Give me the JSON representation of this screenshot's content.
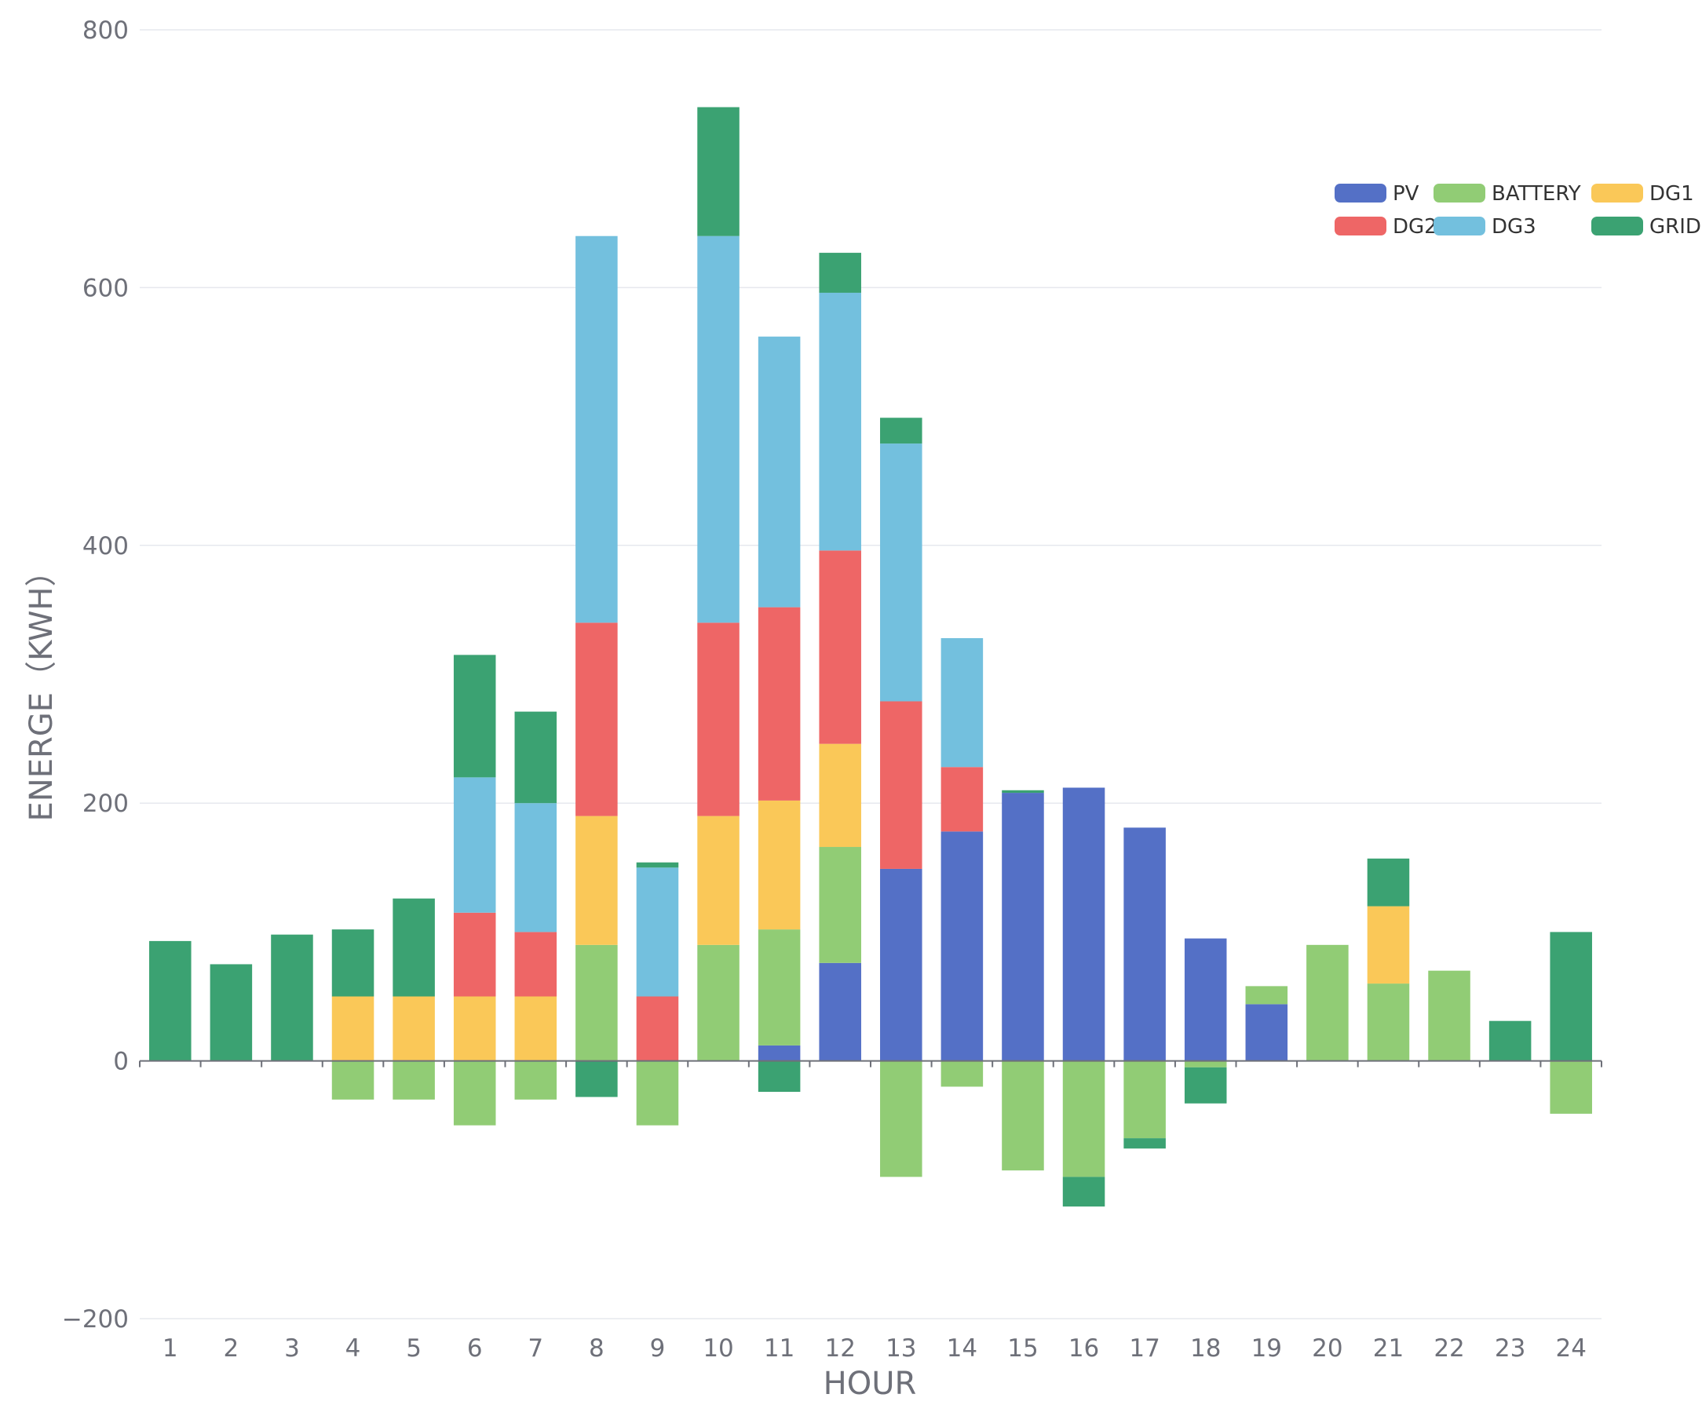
{
  "chart_data": {
    "type": "bar",
    "stacked": true,
    "title": "",
    "xlabel": "HOUR",
    "ylabel": "ENERGE（KWH）",
    "ylim": [
      -200,
      800
    ],
    "yticks": [
      -200,
      0,
      200,
      400,
      600,
      800
    ],
    "ytick_labels": [
      "−200",
      "0",
      "200",
      "400",
      "600",
      "800"
    ],
    "grid": true,
    "legend_position": "top-right",
    "categories": [
      "1",
      "2",
      "3",
      "4",
      "5",
      "6",
      "7",
      "8",
      "9",
      "10",
      "11",
      "12",
      "13",
      "14",
      "15",
      "16",
      "17",
      "18",
      "19",
      "20",
      "21",
      "22",
      "23",
      "24"
    ],
    "series": [
      {
        "name": "PV",
        "color": "#5470c6",
        "values": [
          0,
          0,
          0,
          0,
          0,
          0,
          0,
          0,
          0,
          0,
          12,
          76,
          149,
          178,
          208,
          212,
          181,
          95,
          44,
          0,
          0,
          0,
          0,
          0
        ]
      },
      {
        "name": "BATTERY",
        "color": "#91cc75",
        "values": [
          0,
          0,
          0,
          -30,
          -30,
          -50,
          -30,
          90,
          -50,
          90,
          90,
          90,
          -90,
          -20,
          -85,
          -90,
          -60,
          -5,
          14,
          90,
          60,
          70,
          0,
          -41
        ]
      },
      {
        "name": "DG1",
        "color": "#fac858",
        "values": [
          0,
          0,
          0,
          50,
          50,
          50,
          50,
          100,
          0,
          100,
          100,
          80,
          0,
          0,
          0,
          0,
          0,
          0,
          0,
          0,
          60,
          0,
          0,
          0
        ]
      },
      {
        "name": "DG2",
        "color": "#ee6666",
        "values": [
          0,
          0,
          0,
          0,
          0,
          65,
          50,
          150,
          50,
          150,
          150,
          150,
          130,
          50,
          0,
          0,
          0,
          0,
          0,
          0,
          0,
          0,
          0,
          0
        ]
      },
      {
        "name": "DG3",
        "color": "#73c0de",
        "values": [
          0,
          0,
          0,
          0,
          0,
          105,
          100,
          300,
          100,
          300,
          210,
          200,
          200,
          100,
          0,
          0,
          0,
          0,
          0,
          0,
          0,
          0,
          0,
          0
        ]
      },
      {
        "name": "GRID",
        "color": "#3ba272",
        "values": [
          93,
          75,
          98,
          52,
          76,
          95,
          71,
          -28,
          4,
          100,
          -24,
          31,
          20,
          0,
          2,
          -23,
          -8,
          -28,
          0,
          0,
          37,
          0,
          31,
          100
        ]
      }
    ]
  }
}
